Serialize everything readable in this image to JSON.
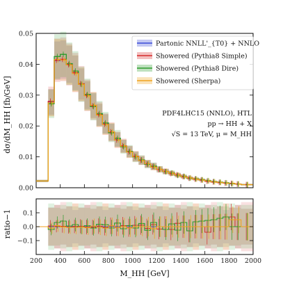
{
  "chart_data": [
    {
      "type": "step",
      "panel": "main",
      "ylabel": "dσ/dM_HH [fb/GeV]",
      "xlim": [
        200,
        2000
      ],
      "ylim": [
        0,
        0.05
      ],
      "yticks": [
        "0.00",
        "0.01",
        "0.02",
        "0.03",
        "0.04",
        "0.05"
      ],
      "bin_edges": [
        200,
        300,
        350,
        400,
        450,
        500,
        550,
        600,
        650,
        700,
        750,
        800,
        850,
        900,
        950,
        1000,
        1050,
        1100,
        1150,
        1200,
        1250,
        1300,
        1350,
        1400,
        1450,
        1500,
        1550,
        1600,
        1650,
        1700,
        1750,
        1800,
        1850,
        1900,
        2000
      ],
      "series": [
        {
          "name": "Partonic NNLL'_{T0} + NNLO",
          "color": "#3a4bd8",
          "values": [
            0.0022,
            0.0278,
            0.0412,
            0.0415,
            0.04,
            0.0372,
            0.0336,
            0.03,
            0.0266,
            0.0236,
            0.0207,
            0.018,
            0.0156,
            0.0135,
            0.0117,
            0.0101,
            0.0088,
            0.0078,
            0.0068,
            0.006,
            0.0053,
            0.0047,
            0.0041,
            0.0036,
            0.0032,
            0.0028,
            0.0025,
            0.0022,
            0.0019,
            0.0017,
            0.0015,
            0.0013,
            0.0012,
            0.001
          ],
          "band": 0.15
        },
        {
          "name": "Showered (Pythia8 Simple)",
          "color": "#d62a2a",
          "values": [
            0.0022,
            0.028,
            0.0413,
            0.0416,
            0.0399,
            0.0373,
            0.0337,
            0.0299,
            0.0265,
            0.0237,
            0.0206,
            0.0181,
            0.0155,
            0.0136,
            0.0116,
            0.0102,
            0.0089,
            0.0077,
            0.0069,
            0.0059,
            0.0053,
            0.0046,
            0.0042,
            0.0036,
            0.0031,
            0.0028,
            0.0025,
            0.0021,
            0.0019,
            0.0017,
            0.0015,
            0.0014,
            0.0012,
            0.001
          ],
          "band": 0.17
        },
        {
          "name": "Showered (Pythia8 Dire)",
          "color": "#2c9a2c",
          "values": [
            0.0022,
            0.0272,
            0.0425,
            0.0432,
            0.0402,
            0.0378,
            0.0335,
            0.0302,
            0.0263,
            0.024,
            0.021,
            0.0178,
            0.016,
            0.0133,
            0.0118,
            0.01,
            0.009,
            0.0076,
            0.007,
            0.006,
            0.0052,
            0.0048,
            0.004,
            0.0037,
            0.0031,
            0.0029,
            0.0026,
            0.0023,
            0.002,
            0.0018,
            0.0016,
            0.0013,
            0.0012,
            0.001
          ],
          "band": 0.17
        },
        {
          "name": "Showered (Sherpa)",
          "color": "#f0a21c",
          "values": [
            0.0022,
            0.0275,
            0.0415,
            0.0414,
            0.0398,
            0.037,
            0.0335,
            0.0298,
            0.0267,
            0.0235,
            0.0205,
            0.0181,
            0.0155,
            0.0135,
            0.0116,
            0.0101,
            0.0088,
            0.0078,
            0.0067,
            0.006,
            0.0053,
            0.0047,
            0.0041,
            0.0036,
            0.0032,
            0.0028,
            0.0025,
            0.0022,
            0.0019,
            0.0017,
            0.0015,
            0.0014,
            0.0012,
            0.001
          ],
          "band": 0.16
        }
      ],
      "legend": "top-right",
      "annotations": [
        "PDF4LHC15 (NNLO), HTL",
        "pp → HH + X",
        "√S = 13 TeV, μ = M_HH"
      ]
    },
    {
      "type": "step",
      "panel": "ratio",
      "xlabel": "M_HH [GeV]",
      "ylabel": "ratio−1",
      "xlim": [
        200,
        2000
      ],
      "ylim": [
        -0.2,
        0.2
      ],
      "xticks": [
        "200",
        "400",
        "600",
        "800",
        "1000",
        "1200",
        "1400",
        "1600",
        "1800",
        "2000"
      ],
      "yticks": [
        "−0.1",
        "0.0",
        "0.1"
      ],
      "series": [
        {
          "name": "Partonic NNLL'_{T0} + NNLO",
          "color": "#3a4bd8",
          "values": [
            0,
            0,
            0,
            0,
            0,
            0,
            0,
            0,
            0,
            0,
            0,
            0,
            0,
            0,
            0,
            0,
            0,
            0,
            0,
            0,
            0,
            0,
            0,
            0,
            0,
            0,
            0,
            0,
            0,
            0,
            0,
            0,
            0,
            0
          ]
        },
        {
          "name": "Showered (Pythia8 Simple)",
          "color": "#d62a2a",
          "values": [
            0,
            0.005,
            0.003,
            0.002,
            -0.003,
            0.002,
            0.003,
            -0.003,
            -0.004,
            0.004,
            -0.005,
            0.006,
            -0.006,
            0.007,
            -0.008,
            0.01,
            0.011,
            -0.013,
            0.015,
            -0.017,
            0,
            -0.02,
            0.024,
            0,
            -0.03,
            0,
            0,
            -0.04,
            0,
            0,
            0,
            0.07,
            0,
            0
          ]
        },
        {
          "name": "Showered (Pythia8 Dire)",
          "color": "#2c9a2c",
          "values": [
            0,
            -0.02,
            0.03,
            0.04,
            0.005,
            0.015,
            -0.003,
            0.007,
            -0.01,
            0.017,
            0.014,
            -0.01,
            0.026,
            -0.015,
            0.008,
            -0.01,
            0.023,
            -0.026,
            0.03,
            0.0,
            -0.02,
            0.02,
            -0.025,
            0.03,
            -0.03,
            0.035,
            0.04,
            0.045,
            0.05,
            0.06,
            0.07,
            0.0,
            0.0,
            0.0
          ]
        },
        {
          "name": "Showered (Sherpa)",
          "color": "#f0a21c",
          "values": [
            0,
            -0.01,
            0.007,
            -0.002,
            -0.005,
            -0.005,
            -0.003,
            -0.007,
            0.004,
            -0.004,
            -0.01,
            0.006,
            -0.006,
            0.0,
            -0.009,
            0.0,
            0.0,
            0.0,
            -0.015,
            0.0,
            0.0,
            0.0,
            0.0,
            0.0,
            0.0,
            0.0,
            0.0,
            0.0,
            0.0,
            0.0,
            0.0,
            0.05,
            0.05,
            0.0
          ]
        }
      ]
    }
  ]
}
